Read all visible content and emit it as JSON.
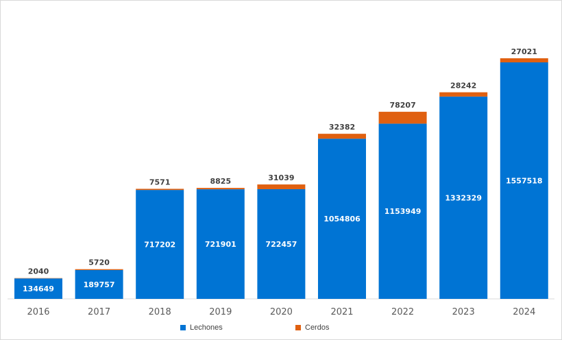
{
  "chart_data": {
    "type": "bar",
    "stacked": true,
    "categories": [
      "2016",
      "2017",
      "2018",
      "2019",
      "2020",
      "2021",
      "2022",
      "2023",
      "2024"
    ],
    "series": [
      {
        "name": "Lechones",
        "color": "#0074d4",
        "values": [
          134649,
          189757,
          717202,
          721901,
          722457,
          1054806,
          1153949,
          1332329,
          1557518
        ]
      },
      {
        "name": "Cerdos",
        "color": "#e06010",
        "values": [
          2040,
          5720,
          7571,
          8825,
          31039,
          32382,
          78207,
          28242,
          27021
        ]
      }
    ],
    "ylim": [
      0,
      1620000
    ],
    "grid": false,
    "legend": "bottom"
  }
}
